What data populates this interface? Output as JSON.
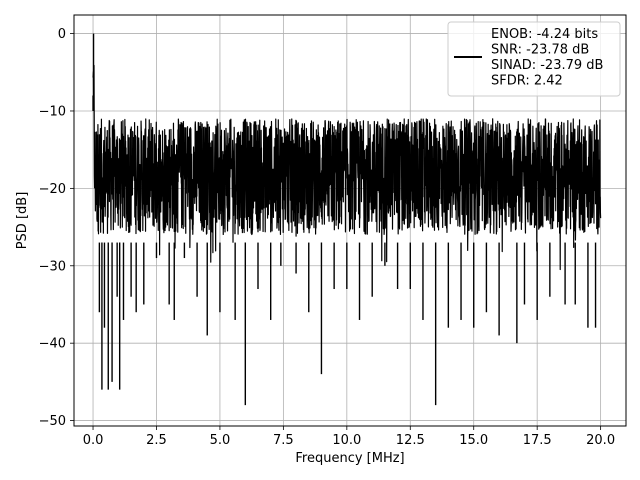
{
  "chart_data": {
    "type": "line",
    "xlabel": "Frequency [MHz]",
    "ylabel": "PSD [dB]",
    "xlim": [
      -0.75,
      21.0
    ],
    "ylim": [
      -50.7,
      2.4
    ],
    "xticks": [
      0.0,
      2.5,
      5.0,
      7.5,
      10.0,
      12.5,
      15.0,
      17.5,
      20.0
    ],
    "xtick_labels": [
      "0.0",
      "2.5",
      "5.0",
      "7.5",
      "10.0",
      "12.5",
      "15.0",
      "17.5",
      "20.0"
    ],
    "yticks": [
      0,
      -10,
      -20,
      -30,
      -40,
      -50
    ],
    "ytick_labels": [
      "0",
      "−10",
      "−20",
      "−30",
      "−40",
      "−50"
    ],
    "grid": true,
    "legend_position": "top-right",
    "legend": {
      "entries": [
        "ENOB: -4.24 bits",
        "SNR: -23.78 dB",
        "SINAD: -23.79 dB",
        "SFDR: 2.42"
      ]
    },
    "series": [
      {
        "color": "#000000",
        "style": "dense noisy power spectral density trace, band between about -10 dB and -27 dB",
        "x": [
          0.0,
          0.02,
          0.15,
          0.25,
          0.35,
          0.45,
          0.6,
          0.75,
          0.95,
          1.05,
          1.2,
          1.5,
          1.7,
          2.0,
          2.5,
          3.0,
          3.2,
          3.6,
          4.1,
          4.5,
          5.0,
          5.6,
          6.0,
          6.5,
          7.0,
          7.4,
          8.0,
          8.5,
          9.0,
          9.5,
          10.0,
          10.5,
          11.0,
          11.5,
          12.0,
          12.5,
          13.0,
          13.5,
          14.0,
          14.5,
          15.0,
          15.5,
          16.0,
          16.7,
          17.0,
          17.5,
          18.0,
          18.6,
          19.0,
          19.5,
          19.8,
          20.0
        ],
        "values": [
          -8,
          0,
          -25,
          -36,
          -46,
          -38,
          -46,
          -45,
          -34,
          -46,
          -37,
          -34,
          -36,
          -35,
          -29,
          -35,
          -37,
          -29,
          -34,
          -39,
          -36,
          -37,
          -48,
          -33,
          -37,
          -30,
          -31,
          -36,
          -44,
          -33,
          -33,
          -37,
          -34,
          -30,
          -33,
          -33,
          -37,
          -48,
          -38,
          -37,
          -38,
          -36,
          -39,
          -40,
          -35,
          -37,
          -34,
          -35,
          -35,
          -38,
          -38,
          -22
        ]
      }
    ]
  }
}
